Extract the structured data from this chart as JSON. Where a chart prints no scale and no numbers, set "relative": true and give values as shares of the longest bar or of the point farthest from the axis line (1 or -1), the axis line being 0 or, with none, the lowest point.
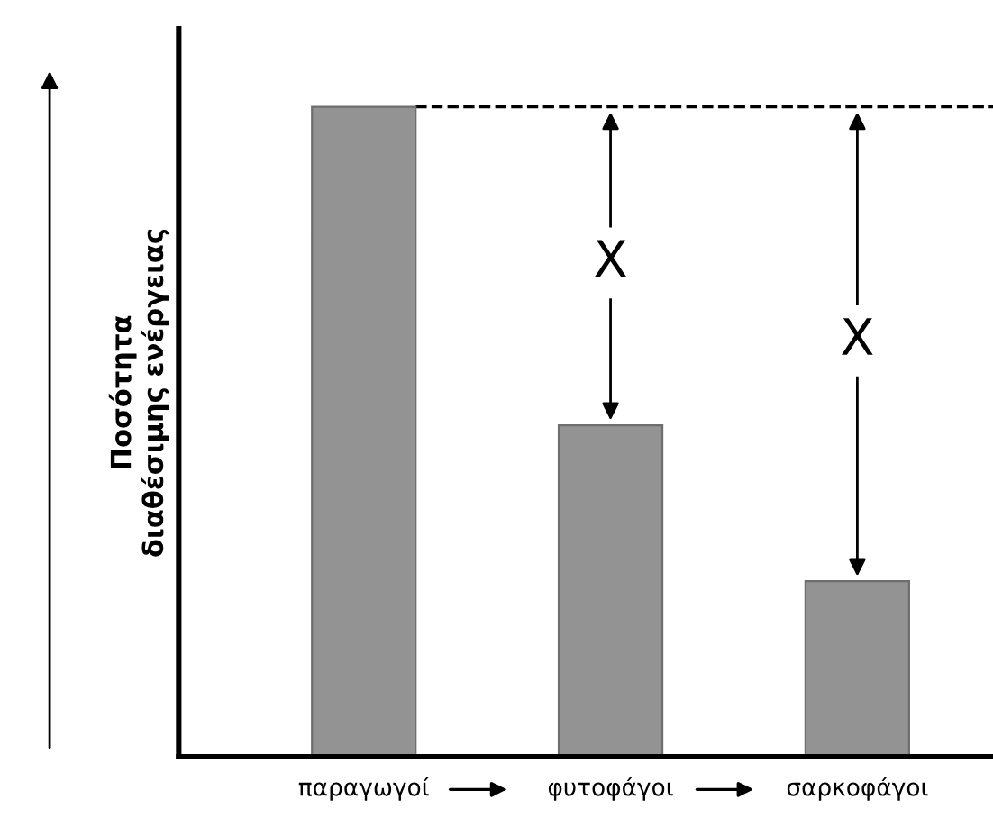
{
  "chart_data": {
    "type": "bar",
    "relative": true,
    "ylabel": "Ποσότητα\nδιαθέσιμης ενέργειας",
    "categories": [
      "παραγωγοί",
      "φυτοφάγοι",
      "σαρκοφάγοι"
    ],
    "values": [
      1,
      0.51,
      0.27
    ],
    "color": "#939393",
    "ref_lines": [
      {
        "axis": "y",
        "value": 1,
        "line_style": "dashed",
        "color": "#000000"
      }
    ],
    "annotations": [
      {
        "text": "X",
        "x": "φυτοφάγοι",
        "y": 0.76
      },
      {
        "text": "X",
        "x": "σαρκοφάγοι",
        "y": 0.64
      }
    ],
    "grid": false
  }
}
